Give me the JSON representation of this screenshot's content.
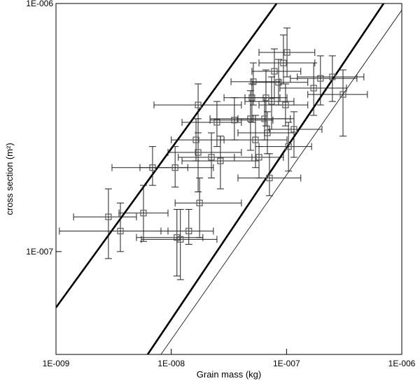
{
  "chart_data": {
    "type": "scatter",
    "x_label": "Grain mass (kg)",
    "y_label": "cross section (m²)",
    "xscale": "log",
    "yscale": "log",
    "xlim": [
      1e-09,
      1e-06
    ],
    "ylim": [
      3.85e-08,
      1e-06
    ],
    "xticks": [
      {
        "value": 1e-09,
        "label": "1E-009"
      },
      {
        "value": 1e-08,
        "label": "1E-008"
      },
      {
        "value": 1e-07,
        "label": "1E-007"
      },
      {
        "value": 1e-06,
        "label": "1E-006"
      }
    ],
    "yticks": [
      {
        "value": 1e-07,
        "label": "1E-007"
      },
      {
        "value": 1e-06,
        "label": "1E-006"
      }
    ],
    "points": {
      "color": "#222222",
      "marker_color": "#666666",
      "x": [
        2.85e-09,
        3.62e-09,
        5.74e-09,
        6.88e-09,
        1.08e-08,
        1.12e-08,
        1.2e-08,
        1.42e-08,
        1.71e-08,
        1.76e-08,
        1.64e-08,
        1.71e-08,
        2.23e-08,
        2.67e-08,
        2.49e-08,
        3.53e-08,
        5.01e-08,
        4.87e-08,
        5.15e-08,
        5.38e-08,
        5.77e-08,
        6.63e-08,
        6.82e-08,
        7.11e-08,
        7.42e-08,
        7.84e-08,
        8.53e-08,
        9.4e-08,
        9.8e-08,
        1.01e-07,
        1.04e-07,
        1.16e-07,
        1.72e-07,
        1.97e-07,
        2.5e-07,
        3.09e-07,
        6.45e-08
      ],
      "x_low": [
        1.42e-09,
        1.07e-09,
        3.52e-09,
        3.06e-09,
        5.35e-09,
        4.99e-09,
        5.5e-09,
        8.14e-09,
        9.37e-09,
        1.08e-08,
        1e-08,
        7.08e-09,
        1.15e-08,
        1.24e-08,
        1.24e-08,
        2.17e-08,
        2.87e-08,
        2.17e-08,
        3.3e-08,
        2.67e-08,
        3.53e-08,
        4.36e-08,
        3.79e-08,
        3.79e-08,
        4.36e-08,
        5.01e-08,
        5.01e-08,
        5.77e-08,
        5.77e-08,
        5.77e-08,
        5.77e-08,
        7.11e-08,
        8.77e-08,
        1.08e-07,
        1.24e-07,
        1.53e-07,
        3.79e-08
      ],
      "x_high": [
        4.99e-09,
        9.37e-09,
        9.37e-09,
        1.39e-08,
        2.32e-08,
        1.88e-08,
        2.49e-08,
        2.32e-08,
        4.06e-08,
        4.06e-08,
        2.87e-08,
        4.06e-08,
        5.01e-08,
        5.77e-08,
        4.06e-08,
        7.62e-08,
        8.77e-08,
        1.08e-07,
        8.77e-08,
        1.01e-07,
        9.4e-08,
        1.01e-07,
        1.16e-07,
        1.33e-07,
        1.16e-07,
        1.33e-07,
        1.53e-07,
        1.76e-07,
        1.53e-07,
        1.76e-07,
        1.65e-07,
        2.03e-07,
        3.31e-07,
        4.08e-07,
        4.69e-07,
        5.03e-07,
        1.16e-07
      ],
      "y": [
        1.38e-07,
        1.21e-07,
        1.43e-07,
        2.18e-07,
        2.18e-07,
        1.14e-07,
        1.12e-07,
        1.21e-07,
        2.51e-07,
        1.57e-07,
        2.82e-07,
        3.9e-07,
        2.4e-07,
        2.32e-07,
        3.32e-07,
        3.39e-07,
        4.17e-07,
        3.43e-07,
        4.84e-07,
        2.82e-07,
        2.4e-07,
        4.17e-07,
        3.01e-07,
        1.98e-07,
        4.03e-07,
        5.33e-07,
        4.81e-07,
        5.76e-07,
        3.9e-07,
        6.35e-07,
        2.65e-07,
        3.11e-07,
        4.56e-07,
        4.99e-07,
        5.06e-07,
        4.3e-07,
        3.43e-07
      ],
      "y_low": [
        9.37e-08,
        1e-07,
        1.1e-07,
        1.85e-07,
        1.82e-07,
        7.97e-08,
        7.71e-08,
        1.07e-07,
        1.74e-07,
        1.14e-07,
        2.32e-07,
        3.01e-07,
        1.98e-07,
        1.79e-07,
        2.65e-07,
        2.82e-07,
        3.32e-07,
        2.56e-07,
        3.9e-07,
        2.18e-07,
        1.98e-07,
        3.21e-07,
        2.48e-07,
        1.68e-07,
        3.11e-07,
        4.17e-07,
        3.9e-07,
        4.74e-07,
        3.21e-07,
        5.06e-07,
        2.11e-07,
        2.4e-07,
        3.54e-07,
        3.9e-07,
        4.03e-07,
        2.92e-07,
        2.82e-07
      ],
      "y_high": [
        1.79e-07,
        1.57e-07,
        1.85e-07,
        2.65e-07,
        2.65e-07,
        1.48e-07,
        1.48e-07,
        1.48e-07,
        3.43e-07,
        1.98e-07,
        3.43e-07,
        4.74e-07,
        3.01e-07,
        2.92e-07,
        4.03e-07,
        4.17e-07,
        4.74e-07,
        4.45e-07,
        5.76e-07,
        3.54e-07,
        2.65e-07,
        5.4e-07,
        3.66e-07,
        2.48e-07,
        5.06e-07,
        6.56e-07,
        5.95e-07,
        7.47e-07,
        4.74e-07,
        7.97e-07,
        3.32e-07,
        3.66e-07,
        5.76e-07,
        6.15e-07,
        6.15e-07,
        5.4e-07,
        4.17e-07
      ]
    },
    "lines": [
      {
        "color": "#000000",
        "width": 2.6,
        "x": [
          1e-09,
          8.2e-08
        ],
        "y": [
          5.95e-08,
          1e-06
        ]
      },
      {
        "color": "#000000",
        "width": 2.6,
        "x": [
          6.24e-09,
          6.95e-07
        ],
        "y": [
          3.85e-08,
          1e-06
        ]
      },
      {
        "color": "#000000",
        "width": 0.8,
        "x": [
          8.14e-09,
          1e-06
        ],
        "y": [
          3.85e-08,
          9.4e-07
        ]
      }
    ]
  }
}
